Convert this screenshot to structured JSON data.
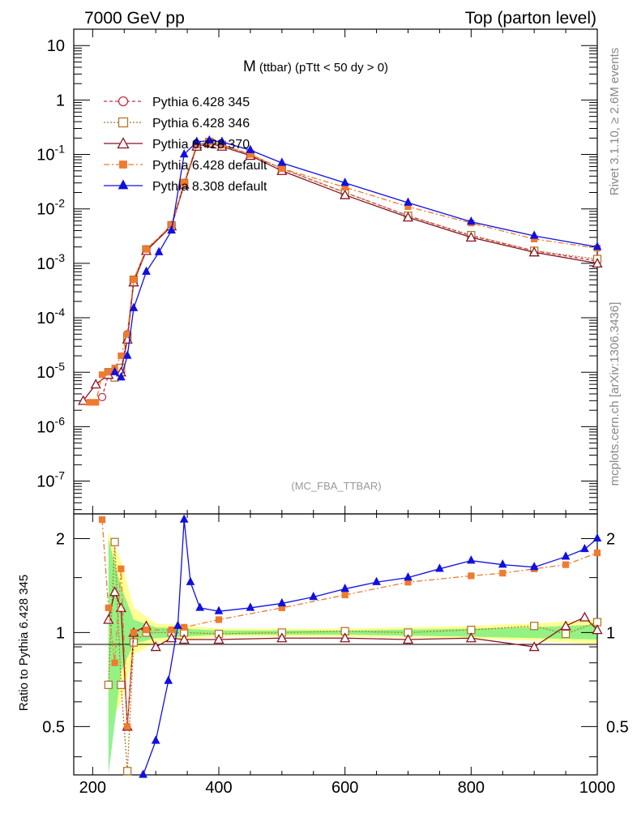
{
  "header": {
    "left_title": "7000 GeV pp",
    "right_title": "Top (parton level)"
  },
  "side_labels": {
    "rivet": "Rivet 3.1.10, ≥ 2.6M events",
    "mcplots": "mcplots.cern.ch [arXiv:1306.3436]"
  },
  "plot": {
    "title_main": "M",
    "title_sub": "(ttbar)  (pTtt < 50 dy > 0)",
    "analysis_tag": "(MC_FBA_TTBAR)",
    "ratio_ylabel": "Ratio to Pythia 6.428 345"
  },
  "legend": [
    {
      "label": "Pythia 6.428 345",
      "color": "#c0304a",
      "marker": "open-circle",
      "dash": "4,3"
    },
    {
      "label": "Pythia 6.428 346",
      "color": "#b07830",
      "marker": "open-square",
      "dash": "2,2"
    },
    {
      "label": "Pythia 6.428 370",
      "color": "#8b1020",
      "marker": "open-triangle",
      "dash": ""
    },
    {
      "label": "Pythia 6.428 default",
      "color": "#f07a30",
      "marker": "filled-square",
      "dash": "7,3,2,3"
    },
    {
      "label": "Pythia 8.308 default",
      "color": "#1010e0",
      "marker": "filled-triangle",
      "dash": ""
    }
  ],
  "chart_data": [
    {
      "type": "line",
      "title": "M (ttbar) (pTtt < 50 dy > 0)",
      "xlabel": "",
      "ylabel": "",
      "xlim": [
        170,
        1000
      ],
      "ylim": [
        2.5e-08,
        20
      ],
      "yscale": "log",
      "x_ticks": [
        "200",
        "400",
        "600",
        "800",
        "1000"
      ],
      "y_ticks": [
        "10",
        "1",
        "10^-1",
        "10^-2",
        "10^-3",
        "10^-4",
        "10^-5",
        "10^-6",
        "10^-7"
      ],
      "series": [
        {
          "name": "Pythia 6.428 345",
          "x": [
            215,
            225,
            235,
            245,
            255,
            265,
            285,
            325,
            345,
            365,
            385,
            405,
            450,
            500,
            600,
            700,
            800,
            900,
            1000
          ],
          "values": [
            3.5e-06,
            9e-06,
            8e-06,
            1e-05,
            5e-05,
            0.0005,
            0.0018,
            0.005,
            0.03,
            0.15,
            0.17,
            0.15,
            0.1,
            0.055,
            0.02,
            0.0075,
            0.0032,
            0.0017,
            0.0011
          ]
        },
        {
          "name": "Pythia 6.428 346",
          "x": [
            225,
            235,
            245,
            255,
            265,
            285,
            325,
            345,
            365,
            385,
            405,
            450,
            500,
            600,
            700,
            800,
            900,
            1000
          ],
          "values": [
            1e-05,
            8e-06,
            1.2e-05,
            4.5e-05,
            0.0005,
            0.0018,
            0.005,
            0.03,
            0.15,
            0.17,
            0.15,
            0.1,
            0.055,
            0.02,
            0.0075,
            0.0033,
            0.0017,
            0.0012
          ]
        },
        {
          "name": "Pythia 6.428 370",
          "x": [
            185,
            205,
            225,
            245,
            255,
            265,
            285,
            325,
            345,
            365,
            385,
            405,
            450,
            500,
            600,
            700,
            800,
            900,
            1000
          ],
          "values": [
            3e-06,
            6e-06,
            9e-06,
            1e-05,
            4e-05,
            0.00045,
            0.0017,
            0.0048,
            0.028,
            0.14,
            0.16,
            0.14,
            0.095,
            0.05,
            0.018,
            0.007,
            0.003,
            0.0016,
            0.001
          ]
        },
        {
          "name": "Pythia 6.428 default",
          "x": [
            195,
            205,
            215,
            225,
            235,
            245,
            255,
            265,
            285,
            325,
            345,
            365,
            385,
            405,
            450,
            500,
            600,
            700,
            800,
            900,
            1000
          ],
          "values": [
            2.8e-06,
            2.8e-06,
            9e-06,
            1e-05,
            1.2e-05,
            2e-05,
            5e-05,
            0.0005,
            0.0018,
            0.005,
            0.03,
            0.15,
            0.17,
            0.15,
            0.1,
            0.055,
            0.025,
            0.011,
            0.0055,
            0.0028,
            0.0019
          ]
        },
        {
          "name": "Pythia 8.308 default",
          "x": [
            235,
            245,
            255,
            265,
            285,
            305,
            325,
            345,
            365,
            385,
            405,
            450,
            500,
            600,
            700,
            800,
            900,
            1000
          ],
          "values": [
            1e-05,
            8e-06,
            2e-05,
            0.00015,
            0.0007,
            0.0016,
            0.004,
            0.1,
            0.17,
            0.18,
            0.17,
            0.12,
            0.07,
            0.03,
            0.013,
            0.0058,
            0.0032,
            0.002
          ]
        }
      ]
    },
    {
      "type": "line",
      "title": "",
      "xlabel": "",
      "ylabel": "Ratio to Pythia 6.428 345",
      "xlim": [
        170,
        1000
      ],
      "ylim": [
        0.35,
        2.4
      ],
      "yscale": "log",
      "x_ticks": [
        "200",
        "400",
        "600",
        "800",
        "1000"
      ],
      "y_ticks": [
        "0.5",
        "1",
        "2"
      ],
      "series": [
        {
          "name": "Pythia 6.428 346",
          "x": [
            225,
            235,
            245,
            255,
            265,
            285,
            325,
            345,
            400,
            500,
            600,
            700,
            800,
            900,
            950,
            1000
          ],
          "values": [
            0.68,
            1.95,
            0.68,
            0.36,
            0.93,
            1.0,
            1.0,
            1.0,
            0.99,
            1.0,
            1.01,
            1.0,
            1.02,
            1.05,
            0.99,
            1.08
          ]
        },
        {
          "name": "Pythia 6.428 370",
          "x": [
            225,
            235,
            245,
            255,
            265,
            285,
            300,
            325,
            345,
            400,
            500,
            600,
            700,
            800,
            900,
            950,
            980,
            1000
          ],
          "values": [
            1.1,
            1.35,
            1.2,
            0.5,
            1.0,
            1.05,
            0.9,
            0.96,
            0.95,
            0.95,
            0.96,
            0.96,
            0.95,
            0.96,
            0.9,
            1.05,
            1.12,
            1.02
          ]
        },
        {
          "name": "Pythia 6.428 default",
          "x": [
            215,
            225,
            235,
            245,
            255,
            265,
            285,
            325,
            345,
            400,
            500,
            600,
            700,
            800,
            850,
            900,
            950,
            1000
          ],
          "values": [
            2.3,
            1.2,
            0.8,
            1.6,
            0.5,
            1.0,
            1.02,
            1.02,
            1.04,
            1.1,
            1.2,
            1.32,
            1.45,
            1.52,
            1.55,
            1.6,
            1.65,
            1.8
          ]
        },
        {
          "name": "Pythia 8.308 default",
          "x": [
            280,
            300,
            320,
            335,
            345,
            355,
            370,
            400,
            450,
            500,
            550,
            600,
            650,
            700,
            750,
            800,
            850,
            900,
            950,
            980,
            1000
          ],
          "values": [
            0.35,
            0.45,
            0.7,
            1.05,
            2.3,
            1.45,
            1.2,
            1.17,
            1.2,
            1.24,
            1.3,
            1.38,
            1.45,
            1.5,
            1.6,
            1.7,
            1.65,
            1.62,
            1.75,
            1.85,
            2.0
          ]
        }
      ],
      "bands": [
        {
          "name": "Pythia 6.428 345 stat (yellow)",
          "x": [
            225,
            245,
            265,
            300,
            400,
            600,
            800,
            900,
            1000
          ],
          "lo": [
            0.5,
            0.6,
            0.85,
            0.93,
            0.97,
            0.97,
            0.96,
            0.94,
            0.92
          ],
          "hi": [
            2.1,
            1.7,
            1.2,
            1.07,
            1.03,
            1.03,
            1.05,
            1.07,
            1.1
          ]
        },
        {
          "name": "Pythia 6.428 345 stat (green)",
          "x": [
            225,
            245,
            265,
            300,
            400,
            600,
            800,
            900,
            1000
          ],
          "lo": [
            0.35,
            0.75,
            0.92,
            0.96,
            0.985,
            0.985,
            0.97,
            0.96,
            0.95
          ],
          "hi": [
            2.0,
            1.4,
            1.1,
            1.04,
            1.015,
            1.015,
            1.03,
            1.04,
            1.06
          ]
        }
      ]
    }
  ]
}
